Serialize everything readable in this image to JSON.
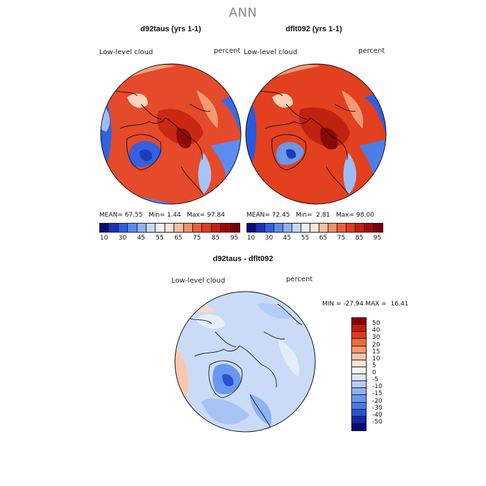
{
  "figure": {
    "title": "ANN",
    "variable_label": "Low-level cloud",
    "units_label": "percent"
  },
  "panels": [
    {
      "title": "d92taus (yrs 1-1)",
      "mean_label": "MEAN=",
      "mean_value": "67.55",
      "min_label": "Min=",
      "min_value": "1.44",
      "max_label": "Max=",
      "max_value": "97.84"
    },
    {
      "title": "dflt092 (yrs 1-1)",
      "mean_label": "MEAN=",
      "mean_value": "72.45",
      "min_label": "Min=",
      "min_value": "2.81",
      "max_label": "Max=",
      "max_value": "98.00"
    }
  ],
  "abs_colorbar": {
    "ticks": [
      "10",
      "30",
      "45",
      "55",
      "65",
      "75",
      "85",
      "95"
    ],
    "colors": [
      "#0a0a7a",
      "#1a2fb5",
      "#2f5ee0",
      "#5a8af0",
      "#8fb2f6",
      "#c6d8fa",
      "#e9eef7",
      "#fde4d4",
      "#f9bda0",
      "#f48f6a",
      "#ec5f3e",
      "#e03a22",
      "#c81e10",
      "#a00a05",
      "#7a0000"
    ]
  },
  "diff_panel": {
    "title": "d92taus - dflt092",
    "min_label": "MIN =",
    "min_value": "-27.94",
    "max_label": "MAX =",
    "max_value": "16.41",
    "colorbar": {
      "ticks": [
        "50",
        "40",
        "30",
        "20",
        "15",
        "10",
        "5",
        "0",
        "-5",
        "-10",
        "-15",
        "-20",
        "-30",
        "-40",
        "-50"
      ],
      "colors": [
        "#8b0000",
        "#c41a0a",
        "#e03a1c",
        "#ef6a3c",
        "#f7996e",
        "#fbc3a5",
        "#fde3d2",
        "#f3f3f3",
        "#d8e6fa",
        "#b3cdf6",
        "#8db3f2",
        "#6a98ec",
        "#4a78e4",
        "#2a52d0",
        "#0e2aaa",
        "#060a78"
      ]
    }
  }
}
